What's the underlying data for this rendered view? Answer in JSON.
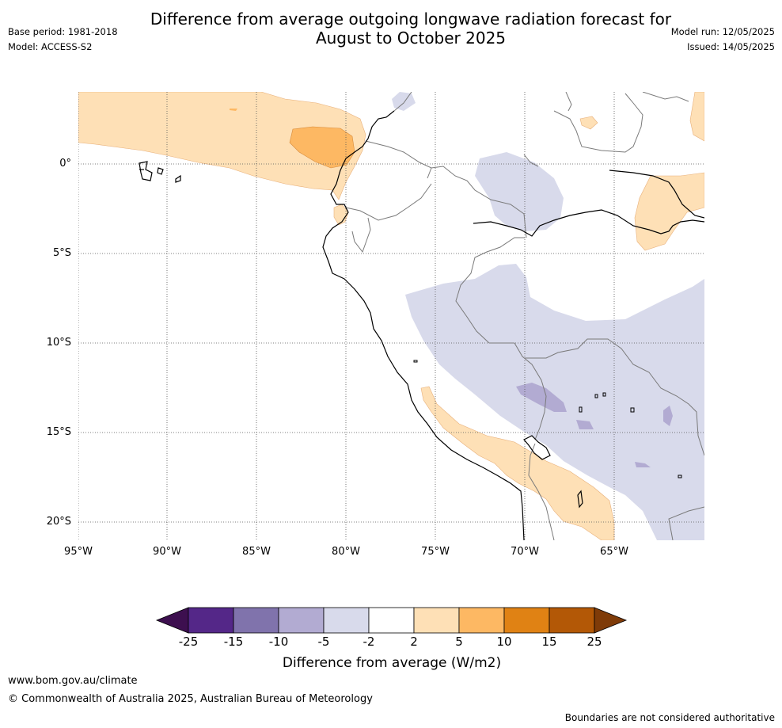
{
  "header": {
    "title_line1": "Difference from average outgoing longwave radiation forecast for",
    "title_line2": "August to October 2025",
    "base_period": "Base period: 1981-2018",
    "model": "Model: ACCESS-S2",
    "model_run": "Model run: 12/05/2025",
    "issued": "Issued: 14/05/2025"
  },
  "map": {
    "lat_labels": [
      "0°",
      "5°S",
      "10°S",
      "15°S",
      "20°S"
    ],
    "lon_labels": [
      "95°W",
      "90°W",
      "85°W",
      "80°W",
      "75°W",
      "70°W",
      "65°W"
    ],
    "colors": {
      "deep_purple": "#3d0f4f",
      "purple": "#542788",
      "mid_purple": "#8073ac",
      "light_purple": "#b2abd2",
      "pale_purple": "#d8daeb",
      "neutral": "#ffffff",
      "pale_orange": "#fee0b6",
      "light_orange": "#fdb863",
      "orange": "#e08214",
      "dark_orange": "#b35806",
      "brown": "#7f3b08",
      "coast": "#000000",
      "border": "#7a7a7a"
    }
  },
  "colorbar": {
    "ticks": [
      "-25",
      "-15",
      "-10",
      "-5",
      "-2",
      "2",
      "5",
      "10",
      "15",
      "25"
    ],
    "title": "Difference from average (W/m2)"
  },
  "footer": {
    "url": "www.bom.gov.au/climate",
    "copyright": "© Commonwealth of Australia 2025, Australian Bureau of Meteorology",
    "disclaimer": "Boundaries are not considered authoritative"
  }
}
